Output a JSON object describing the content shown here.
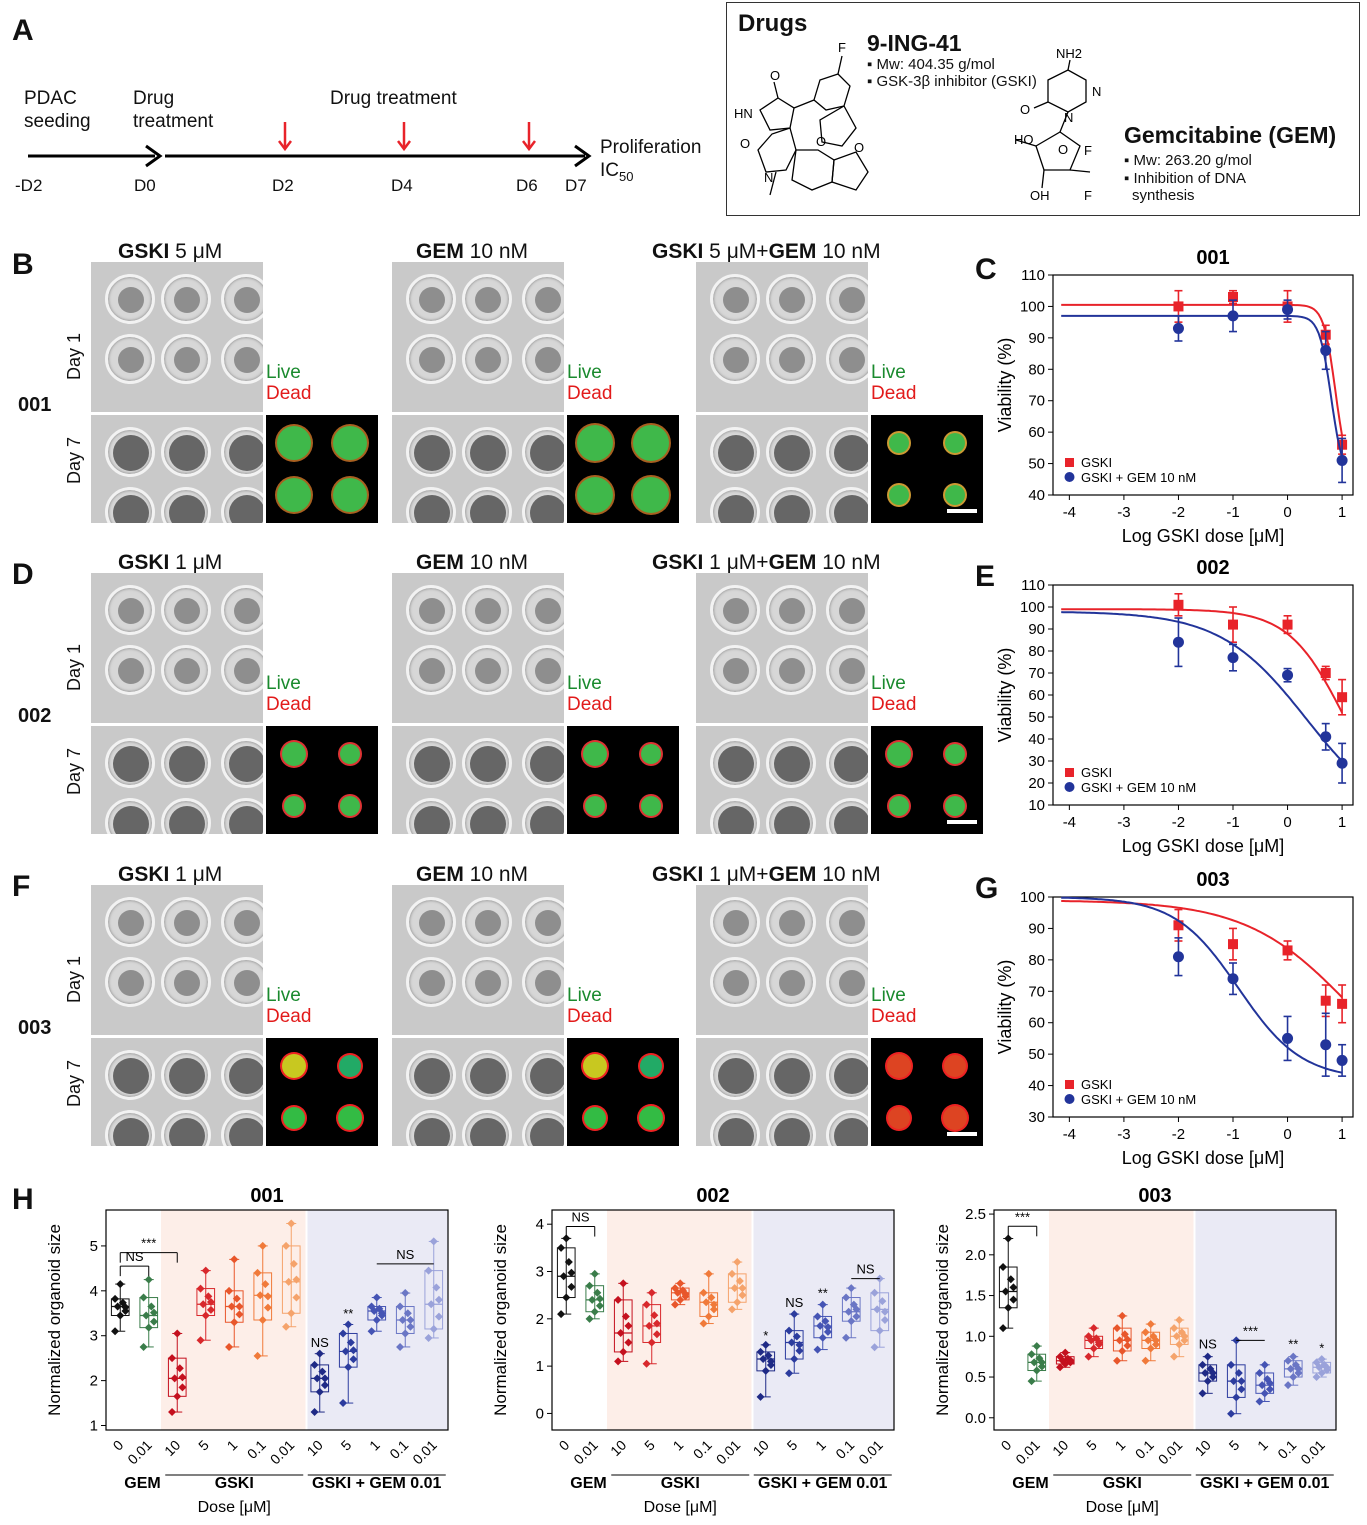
{
  "panelA": {
    "letter": "A",
    "timeline": {
      "top_labels": [
        "PDAC",
        "seeding",
        "Drug",
        "treatment",
        "Drug treatment"
      ],
      "days": [
        "-D2",
        "D0",
        "D2",
        "D4",
        "D6",
        "D7"
      ],
      "end_label_1": "Proliferation",
      "end_label_2": "IC",
      "end_label_sub": "50"
    },
    "drugs_box": {
      "title": "Drugs",
      "drug1_name": "9-ING-41",
      "drug1_mw": "▪ Mw: 404.35 g/mol",
      "drug1_desc": "▪ GSK-3β inhibitor (GSKI)",
      "drug2_name": "Gemcitabine (GEM)",
      "drug2_mw": "▪ Mw: 263.20 g/mol",
      "drug2_desc1": "▪ Inhibition of DNA",
      "drug2_desc2": "synthesis",
      "atoms": [
        "F",
        "O",
        "HN",
        "O",
        "O",
        "N",
        "O",
        "NH2",
        "N",
        "O",
        "N",
        "HO",
        "O",
        "F",
        "OH",
        "F"
      ]
    }
  },
  "image_rows": [
    {
      "letter": "B",
      "sample": "001",
      "cond1_bold": "GSKI",
      "cond1_rest": " 5 μM",
      "cond2_bold": "GEM",
      "cond2_rest": " 10 nM",
      "cond3_bold1": "GSKI",
      "cond3_mid": " 5 μM+",
      "cond3_bold2": "GEM",
      "cond3_rest": " 10 nM",
      "day1": "Day 1",
      "day7": "Day 7",
      "live": "Live",
      "dead": "Dead"
    },
    {
      "letter": "D",
      "sample": "002",
      "cond1_bold": "GSKI",
      "cond1_rest": " 1 μM",
      "cond2_bold": "GEM",
      "cond2_rest": " 10 nM",
      "cond3_bold1": "GSKI",
      "cond3_mid": " 1 μM+",
      "cond3_bold2": "GEM",
      "cond3_rest": " 10 nM",
      "day1": "Day 1",
      "day7": "Day 7",
      "live": "Live",
      "dead": "Dead"
    },
    {
      "letter": "F",
      "sample": "003",
      "cond1_bold": "GSKI",
      "cond1_rest": " 1 μM",
      "cond2_bold": "GEM",
      "cond2_rest": " 10 nM",
      "cond3_bold1": "GSKI",
      "cond3_mid": " 1 μM+",
      "cond3_bold2": "GEM",
      "cond3_rest": " 10 nM",
      "day1": "Day 1",
      "day7": "Day 7",
      "live": "Live",
      "dead": "Dead"
    }
  ],
  "colors": {
    "gski": "#e8232a",
    "combo": "#22349a",
    "gem": "#3a7d4a",
    "ctrl": "#111111"
  },
  "chart_data": [
    {
      "type": "scatter",
      "letter": "C",
      "title": "001",
      "xlabel": "Log GSKI dose [μM]",
      "ylabel": "Viability (%)",
      "xlim": [
        -4.3,
        1.2
      ],
      "ylim": [
        40,
        110
      ],
      "xticks": [
        -4,
        -3,
        -2,
        -1,
        0,
        1
      ],
      "yticks": [
        40,
        50,
        60,
        70,
        80,
        90,
        100,
        110
      ],
      "legend": [
        "GSKI",
        "GSKI + GEM 10 nM"
      ],
      "legend_position": "bottom-left",
      "series": [
        {
          "name": "GSKI",
          "x": [
            -2,
            -1,
            0,
            0.7,
            1
          ],
          "y": [
            100,
            103,
            100,
            91,
            56
          ],
          "err": [
            5,
            2,
            5,
            3,
            3
          ],
          "fit": {
            "top": 100.5,
            "bottom": 45,
            "ic50": 0.88,
            "hill": 4.0
          }
        },
        {
          "name": "GSKI + GEM 10 nM",
          "x": [
            -2,
            -1,
            0,
            0.7,
            1
          ],
          "y": [
            93,
            97,
            99,
            86,
            51
          ],
          "err": [
            4,
            5,
            3,
            6,
            7
          ],
          "fit": {
            "top": 97,
            "bottom": 45,
            "ic50": 0.8,
            "hill": 4.0
          }
        }
      ]
    },
    {
      "type": "scatter",
      "letter": "E",
      "title": "002",
      "xlabel": "Log GSKI dose [μM]",
      "ylabel": "Viability (%)",
      "xlim": [
        -4.3,
        1.2
      ],
      "ylim": [
        10,
        110
      ],
      "xticks": [
        -4,
        -3,
        -2,
        -1,
        0,
        1
      ],
      "yticks": [
        10,
        20,
        30,
        40,
        50,
        60,
        70,
        80,
        90,
        100,
        110
      ],
      "legend": [
        "GSKI",
        "GSKI + GEM 10 nM"
      ],
      "legend_position": "bottom-left",
      "series": [
        {
          "name": "GSKI",
          "x": [
            -2,
            -1,
            0,
            0.7,
            1
          ],
          "y": [
            101,
            92,
            92,
            70,
            59
          ],
          "err": [
            5,
            8,
            4,
            3,
            8
          ],
          "fit": {
            "top": 99,
            "bottom": 0,
            "ic50": 1.05,
            "hill": 0.85
          }
        },
        {
          "name": "GSKI + GEM 10 nM",
          "x": [
            -2,
            -1,
            0,
            0.7,
            1
          ],
          "y": [
            84,
            77,
            69,
            41,
            29
          ],
          "err": [
            11,
            6,
            3,
            6,
            9
          ],
          "fit": {
            "top": 98,
            "bottom": 0,
            "ic50": 0.35,
            "hill": 0.55
          }
        }
      ]
    },
    {
      "type": "scatter",
      "letter": "G",
      "title": "003",
      "xlabel": "Log GSKI dose [μM]",
      "ylabel": "Viability (%)",
      "xlim": [
        -4.3,
        1.2
      ],
      "ylim": [
        30,
        100
      ],
      "xticks": [
        -4,
        -3,
        -2,
        -1,
        0,
        1
      ],
      "yticks": [
        30,
        40,
        50,
        60,
        70,
        80,
        90,
        100
      ],
      "legend": [
        "GSKI",
        "GSKI + GEM 10 nM"
      ],
      "legend_position": "bottom-left",
      "series": [
        {
          "name": "GSKI",
          "x": [
            -2,
            -1,
            0,
            0.7,
            1
          ],
          "y": [
            91,
            85,
            83,
            67,
            66
          ],
          "err": [
            5,
            5,
            3,
            5,
            6
          ],
          "fit": {
            "top": 99,
            "bottom": 30,
            "ic50": 1.2,
            "hill": 0.45
          }
        },
        {
          "name": "GSKI + GEM 10 nM",
          "x": [
            -2,
            -1,
            0,
            0.7,
            1
          ],
          "y": [
            81,
            74,
            55,
            53,
            48
          ],
          "err": [
            6,
            5,
            7,
            10,
            5
          ],
          "fit": {
            "top": 100,
            "bottom": 42,
            "ic50": -0.9,
            "hill": 0.75
          }
        }
      ]
    },
    {
      "type": "box",
      "letter": "H",
      "title": "001",
      "ylabel": "Normalized organoid size",
      "xlabel": "Dose [μM]",
      "ylim": [
        0.9,
        5.8
      ],
      "yticks": [
        1,
        2,
        3,
        4,
        5
      ],
      "tick_labels": [
        "0",
        "0.01",
        "10",
        "5",
        "1",
        "0.1",
        "0.01",
        "10",
        "5",
        "1",
        "0.1",
        "0.01"
      ],
      "groups": [
        "GEM",
        "GSKI",
        "GSKI + GEM 0.01"
      ],
      "boxes": [
        {
          "q1": 3.45,
          "med": 3.65,
          "q3": 3.82,
          "min": 3.1,
          "max": 4.15,
          "c": "ctrl"
        },
        {
          "q1": 3.18,
          "med": 3.45,
          "q3": 3.85,
          "min": 2.75,
          "max": 4.25,
          "c": "gem"
        },
        {
          "q1": 1.65,
          "med": 2.05,
          "q3": 2.5,
          "min": 1.3,
          "max": 3.05,
          "c": "g10"
        },
        {
          "q1": 3.45,
          "med": 3.7,
          "q3": 4.05,
          "min": 2.9,
          "max": 4.45,
          "c": "g5"
        },
        {
          "q1": 3.3,
          "med": 3.65,
          "q3": 4.0,
          "min": 2.75,
          "max": 4.7,
          "c": "g1"
        },
        {
          "q1": 3.35,
          "med": 3.9,
          "q3": 4.4,
          "min": 2.55,
          "max": 5.0,
          "c": "g01"
        },
        {
          "q1": 3.5,
          "med": 4.2,
          "q3": 5.0,
          "min": 3.2,
          "max": 5.5,
          "c": "g001"
        },
        {
          "q1": 1.75,
          "med": 2.05,
          "q3": 2.35,
          "min": 1.3,
          "max": 2.6,
          "c": "c10"
        },
        {
          "q1": 2.3,
          "med": 2.65,
          "q3": 3.05,
          "min": 1.5,
          "max": 3.25,
          "c": "c5"
        },
        {
          "q1": 3.35,
          "med": 3.55,
          "q3": 3.65,
          "min": 3.1,
          "max": 3.85,
          "c": "c1"
        },
        {
          "q1": 3.05,
          "med": 3.35,
          "q3": 3.65,
          "min": 2.75,
          "max": 3.95,
          "c": "c01"
        },
        {
          "q1": 3.15,
          "med": 3.7,
          "q3": 4.45,
          "min": 2.95,
          "max": 5.1,
          "c": "c001"
        }
      ],
      "annotations": [
        {
          "text": "***",
          "from": 0,
          "to": 2,
          "y": 4.85
        },
        {
          "text": "NS",
          "from": 0,
          "to": 1,
          "y": 4.55
        },
        {
          "text": "NS",
          "from": 9,
          "to": 11,
          "y": 4.6
        },
        {
          "text": "NS",
          "at": 7,
          "y": 2.75
        },
        {
          "text": "**",
          "at": 8,
          "y": 3.4
        }
      ]
    },
    {
      "type": "box",
      "letter": "H",
      "title": "002",
      "ylabel": "Normalized organoid size",
      "xlabel": "Dose [μM]",
      "ylim": [
        -0.35,
        4.3
      ],
      "yticks": [
        0,
        1,
        2,
        3,
        4
      ],
      "tick_labels": [
        "0",
        "0.01",
        "10",
        "5",
        "1",
        "0.1",
        "0.01",
        "10",
        "5",
        "1",
        "0.1",
        "0.01"
      ],
      "groups": [
        "GEM",
        "GSKI",
        "GSKI + GEM 0.01"
      ],
      "boxes": [
        {
          "q1": 2.45,
          "med": 2.9,
          "q3": 3.5,
          "min": 2.1,
          "max": 3.7,
          "c": "ctrl"
        },
        {
          "q1": 2.15,
          "med": 2.4,
          "q3": 2.7,
          "min": 2.0,
          "max": 2.95,
          "c": "gem"
        },
        {
          "q1": 1.3,
          "med": 1.7,
          "q3": 2.4,
          "min": 1.1,
          "max": 2.75,
          "c": "g10"
        },
        {
          "q1": 1.5,
          "med": 1.85,
          "q3": 2.3,
          "min": 1.05,
          "max": 2.55,
          "c": "g5"
        },
        {
          "q1": 2.4,
          "med": 2.55,
          "q3": 2.65,
          "min": 2.3,
          "max": 2.75,
          "c": "g1"
        },
        {
          "q1": 2.05,
          "med": 2.35,
          "q3": 2.55,
          "min": 1.9,
          "max": 2.95,
          "c": "g01"
        },
        {
          "q1": 2.35,
          "med": 2.65,
          "q3": 2.95,
          "min": 2.2,
          "max": 3.2,
          "c": "g001"
        },
        {
          "q1": 0.9,
          "med": 1.15,
          "q3": 1.3,
          "min": 0.35,
          "max": 1.45,
          "c": "c10"
        },
        {
          "q1": 1.15,
          "med": 1.5,
          "q3": 1.75,
          "min": 0.85,
          "max": 2.1,
          "c": "c5"
        },
        {
          "q1": 1.6,
          "med": 1.85,
          "q3": 2.05,
          "min": 1.35,
          "max": 2.3,
          "c": "c1"
        },
        {
          "q1": 1.95,
          "med": 2.15,
          "q3": 2.45,
          "min": 1.6,
          "max": 2.65,
          "c": "c01"
        },
        {
          "q1": 1.75,
          "med": 2.2,
          "q3": 2.55,
          "min": 1.4,
          "max": 2.85,
          "c": "c001"
        }
      ],
      "annotations": [
        {
          "text": "NS",
          "from": 0,
          "to": 1,
          "y": 3.95
        },
        {
          "text": "NS",
          "from": 10,
          "to": 11,
          "y": 2.85
        },
        {
          "text": "*",
          "at": 7,
          "y": 1.55
        },
        {
          "text": "NS",
          "at": 8,
          "y": 2.25
        },
        {
          "text": "**",
          "at": 9,
          "y": 2.45
        }
      ]
    },
    {
      "type": "box",
      "letter": "H",
      "title": "003",
      "ylabel": "Normalized organoid size",
      "xlabel": "Dose [μM]",
      "ylim": [
        -0.15,
        2.55
      ],
      "yticks": [
        0.0,
        0.5,
        1.0,
        1.5,
        2.0,
        2.5
      ],
      "tick_labels": [
        "0",
        "0.01",
        "10",
        "5",
        "1",
        "0.1",
        "0.01",
        "10",
        "5",
        "1",
        "0.1",
        "0.01"
      ],
      "groups": [
        "GEM",
        "GSKI",
        "GSKI + GEM 0.01"
      ],
      "boxes": [
        {
          "q1": 1.35,
          "med": 1.55,
          "q3": 1.85,
          "min": 1.1,
          "max": 2.2,
          "c": "ctrl"
        },
        {
          "q1": 0.58,
          "med": 0.68,
          "q3": 0.78,
          "min": 0.45,
          "max": 0.88,
          "c": "gem"
        },
        {
          "q1": 0.66,
          "med": 0.7,
          "q3": 0.75,
          "min": 0.62,
          "max": 0.8,
          "c": "g10"
        },
        {
          "q1": 0.85,
          "med": 0.95,
          "q3": 1.0,
          "min": 0.75,
          "max": 1.1,
          "c": "g5"
        },
        {
          "q1": 0.82,
          "med": 0.95,
          "q3": 1.1,
          "min": 0.7,
          "max": 1.25,
          "c": "g1"
        },
        {
          "q1": 0.85,
          "med": 0.95,
          "q3": 1.05,
          "min": 0.7,
          "max": 1.15,
          "c": "g01"
        },
        {
          "q1": 0.9,
          "med": 1.0,
          "q3": 1.1,
          "min": 0.75,
          "max": 1.2,
          "c": "g001"
        },
        {
          "q1": 0.45,
          "med": 0.55,
          "q3": 0.65,
          "min": 0.3,
          "max": 0.75,
          "c": "c10"
        },
        {
          "q1": 0.25,
          "med": 0.45,
          "q3": 0.65,
          "min": 0.05,
          "max": 0.95,
          "c": "c5"
        },
        {
          "q1": 0.3,
          "med": 0.4,
          "q3": 0.55,
          "min": 0.2,
          "max": 0.65,
          "c": "c1"
        },
        {
          "q1": 0.5,
          "med": 0.6,
          "q3": 0.7,
          "min": 0.4,
          "max": 0.75,
          "c": "c01"
        },
        {
          "q1": 0.55,
          "med": 0.62,
          "q3": 0.68,
          "min": 0.5,
          "max": 0.72,
          "c": "c001"
        }
      ],
      "annotations": [
        {
          "text": "***",
          "from": 0,
          "to": 1,
          "y": 2.35
        },
        {
          "text": "***",
          "from": 8,
          "to": 9,
          "y": 0.95
        },
        {
          "text": "NS",
          "at": 7,
          "y": 0.85
        },
        {
          "text": "**",
          "at": 10,
          "y": 0.85
        },
        {
          "text": "*",
          "at": 11,
          "y": 0.8
        }
      ]
    }
  ]
}
